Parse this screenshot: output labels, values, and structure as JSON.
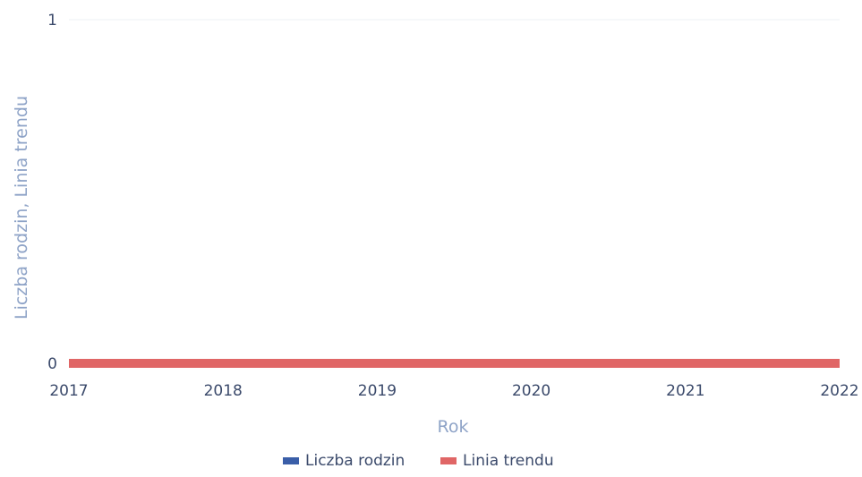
{
  "chart_data": {
    "type": "line",
    "title": "",
    "xlabel": "Rok",
    "ylabel": "Liczba rodzin, Linia trendu",
    "x": [
      "2017",
      "2018",
      "2019",
      "2020",
      "2021",
      "2022"
    ],
    "xlim": [
      2017,
      2022
    ],
    "ylim": [
      0,
      1
    ],
    "yticks": [
      "0",
      "1"
    ],
    "grid": false,
    "legend_position": "bottom",
    "series": [
      {
        "name": "Liczba rodzin",
        "color": "#3a5ea8",
        "values": [
          0,
          0,
          0,
          0,
          0,
          0
        ]
      },
      {
        "name": "Linia trendu",
        "color": "#e06666",
        "values": [
          0,
          0,
          0,
          0,
          0,
          0
        ]
      }
    ]
  }
}
